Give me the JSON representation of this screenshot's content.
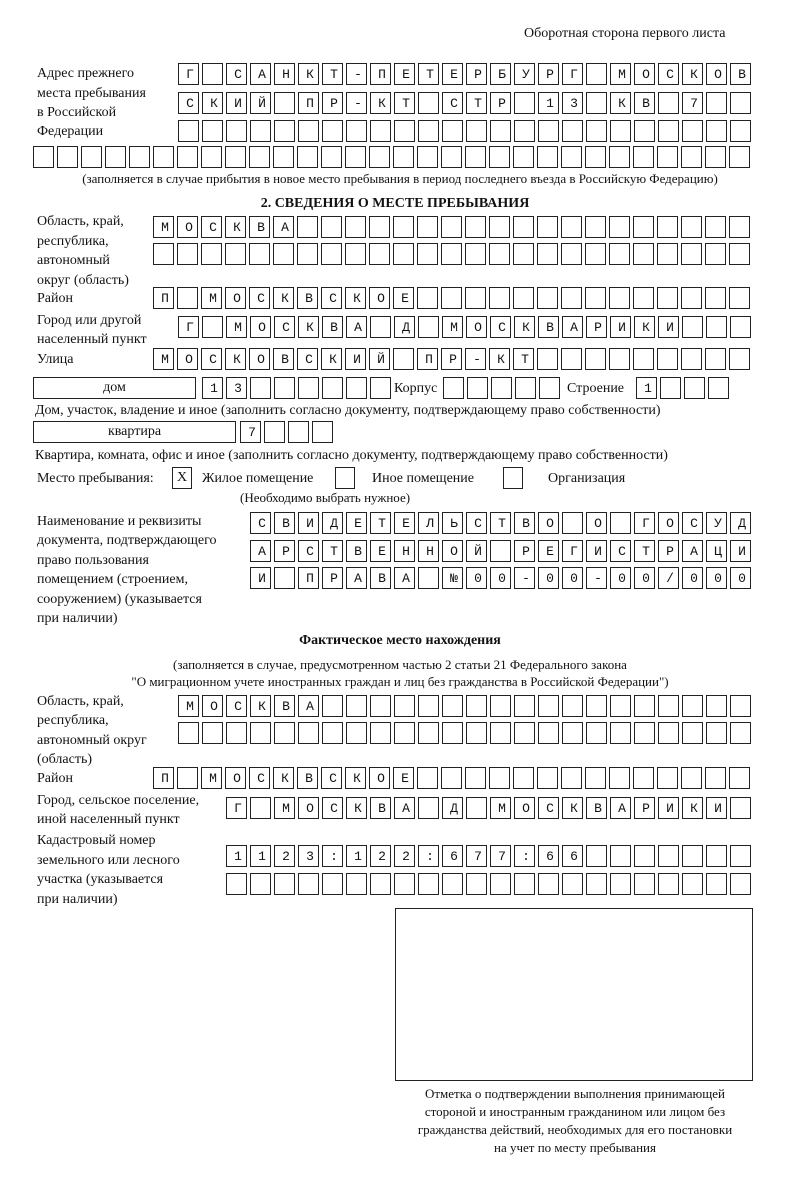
{
  "header": {
    "side_note": "Оборотная сторона первого листа"
  },
  "previous_address": {
    "label": [
      "Адрес прежнего",
      "места пребывания",
      "в Российской",
      "Федерации"
    ],
    "rows": [
      "Г САНКТ-ПЕТЕРБУРГ МОСКОВ",
      "СКИЙ ПР-КТ СТР 13 КВ 7",
      "",
      ""
    ],
    "note": "(заполняется в случае прибытия в новое место пребывания в период последнего въезда в Российскую Федерацию)"
  },
  "section2": {
    "title": "2. СВЕДЕНИЯ О МЕСТЕ ПРЕБЫВАНИЯ",
    "region_label": [
      "Область, край,",
      "республика,",
      "автономный",
      "округ (область)"
    ],
    "region_rows": [
      "МОСКВА",
      ""
    ],
    "district_label": "Район",
    "district": "П МОСКВСКОЕ",
    "city_label": [
      "Город или другой",
      "населенный пункт"
    ],
    "city": "Г МОСКВА Д МОСКВАРИКИ",
    "street_label": "Улица",
    "street": "МОСКОВСКИЙ ПР-КТ",
    "house_type": "дом",
    "house": "13",
    "korpus_label": "Корпус",
    "korpus": "",
    "building_label": "Строение",
    "building": "1",
    "house_note": "Дом, участок, владение и иное (заполнить согласно документу, подтверждающему право собственности)",
    "flat_type": "квартира",
    "flat": "7",
    "flat_note": "Квартира, комната, офис и иное (заполнить согласно документу, подтверждающему право собственности)",
    "place_label": "Место пребывания:",
    "place_options": [
      {
        "label": "Жилое помещение",
        "mark": "X"
      },
      {
        "label": "Иное помещение",
        "mark": ""
      },
      {
        "label": "Организация",
        "mark": ""
      }
    ],
    "place_note": "(Необходимо выбрать нужное)",
    "doc_label": [
      "Наименование и реквизиты",
      "документа, подтверждающего",
      "право пользования",
      "помещением (строением,",
      "сооружением) (указывается",
      "при наличии)"
    ],
    "doc_rows": [
      "СВИДЕТЕЛЬСТВО О ГОСУД",
      "АРСТВЕННОЙ РЕГИСТРАЦИ",
      "И ПРАВА №00-00-00/000"
    ]
  },
  "actual": {
    "title": "Фактическое место нахождения",
    "note": [
      "(заполняется в случае, предусмотренном частью 2 статьи 21 Федерального закона",
      "\"О миграционном учете иностранных граждан и лиц без гражданства в Российской Федерации\")"
    ],
    "region_label": [
      "Область, край,",
      "республика,",
      "автономный округ",
      "(область)"
    ],
    "region_rows": [
      "МОСКВА",
      ""
    ],
    "district_label": "Район",
    "district": "П МОСКВСКОЕ",
    "city_label": [
      "Город, сельское поселение,",
      "иной населенный пункт"
    ],
    "city": "Г МОСКВА Д МОСКВАРИКИ",
    "cadastre_label": [
      "Кадастровый номер",
      "земельного или лесного",
      "участка (указывается",
      "при наличии)"
    ],
    "cadastre_rows": [
      "1123:122:677:66",
      ""
    ]
  },
  "stamp": {
    "caption": [
      "Отметка о подтверждении выполнения принимающей",
      "стороной и иностранным гражданином или лицом без",
      "гражданства действий, необходимых для его постановки",
      "на учет по месту пребывания"
    ]
  }
}
